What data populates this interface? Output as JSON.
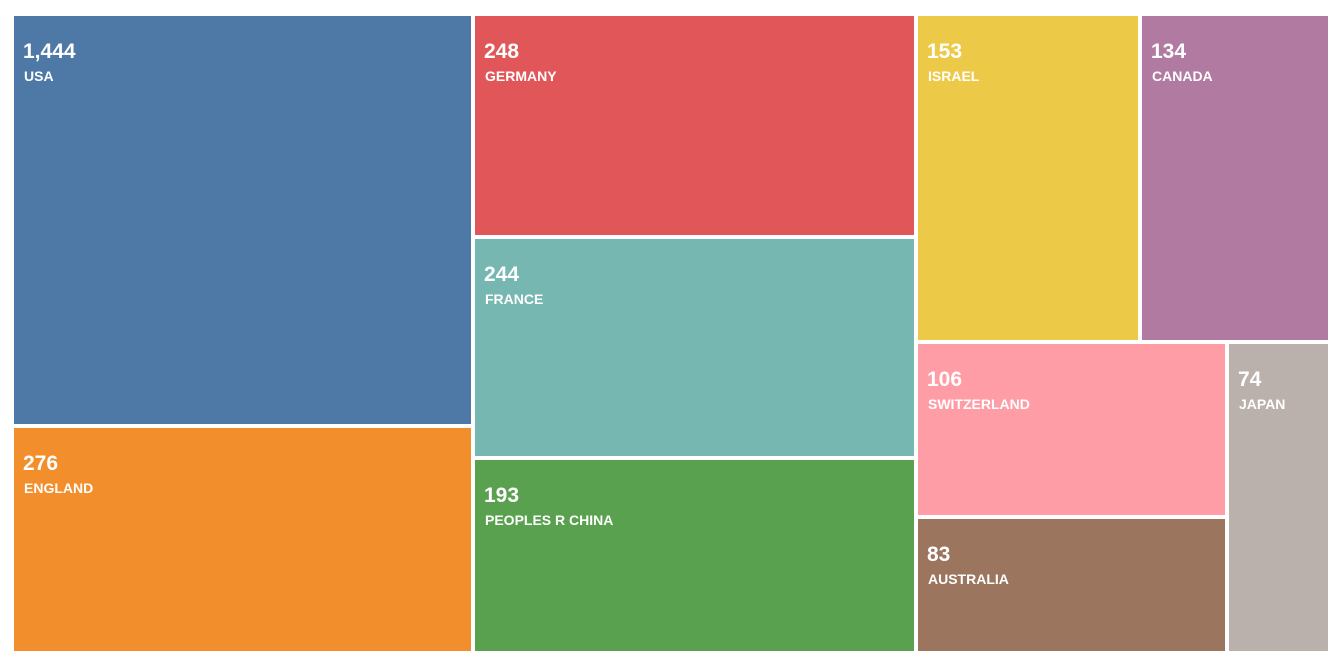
{
  "chart_data": {
    "type": "treemap",
    "title": "",
    "items": [
      {
        "label": "USA",
        "value": 1444,
        "value_text": "1,444",
        "color": "#4e79a7"
      },
      {
        "label": "ENGLAND",
        "value": 276,
        "value_text": "276",
        "color": "#f28e2b"
      },
      {
        "label": "GERMANY",
        "value": 248,
        "value_text": "248",
        "color": "#e15759"
      },
      {
        "label": "FRANCE",
        "value": 244,
        "value_text": "244",
        "color": "#76b7b2"
      },
      {
        "label": "PEOPLES R CHINA",
        "value": 193,
        "value_text": "193",
        "color": "#59a14f"
      },
      {
        "label": "ISRAEL",
        "value": 153,
        "value_text": "153",
        "color": "#edc948"
      },
      {
        "label": "CANADA",
        "value": 134,
        "value_text": "134",
        "color": "#b07aa1"
      },
      {
        "label": "SWITZERLAND",
        "value": 106,
        "value_text": "106",
        "color": "#ff9da7"
      },
      {
        "label": "AUSTRALIA",
        "value": 83,
        "value_text": "83",
        "color": "#9c755f"
      },
      {
        "label": "JAPAN",
        "value": 74,
        "value_text": "74",
        "color": "#bab0ac"
      }
    ]
  }
}
